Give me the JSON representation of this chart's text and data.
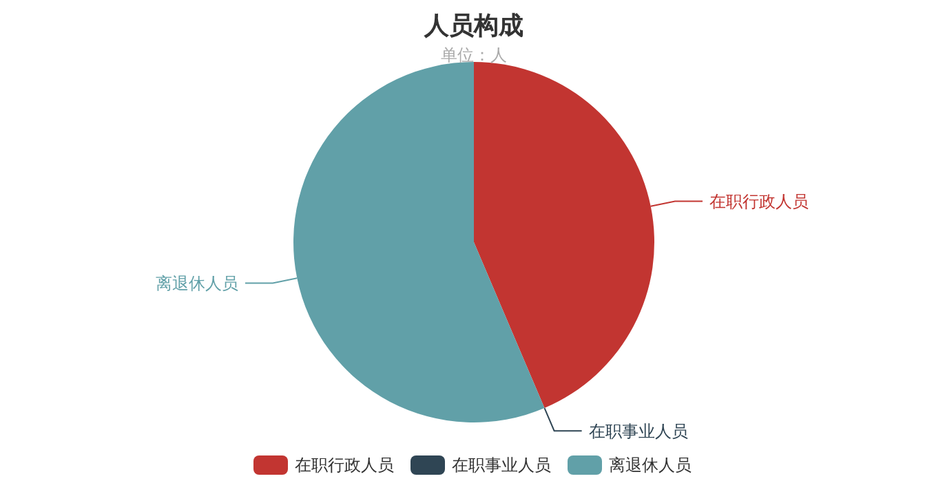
{
  "chart_data": {
    "type": "pie",
    "title": "人员构成",
    "subtitle": "单位：人",
    "categories": [
      "在职行政人员",
      "在职事业人员",
      "离退休人员"
    ],
    "values": [
      43.6,
      0,
      56.4
    ],
    "colors": [
      "#c23531",
      "#2f4554",
      "#61a0a8"
    ],
    "legend": "bottom"
  }
}
